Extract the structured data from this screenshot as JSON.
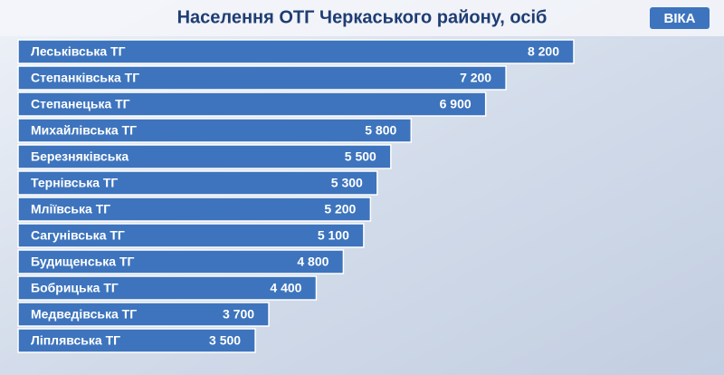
{
  "logo": "ВІКА",
  "chart_data": {
    "type": "bar",
    "orientation": "horizontal",
    "title": "Населення ОТГ Черкаського району, осіб",
    "categories": [
      "Леськівська ТГ",
      "Степанківська ТГ",
      "Степанецька ТГ",
      "Михайлівська ТГ",
      "Березняківська",
      "Тернівська ТГ",
      "Мліївська ТГ",
      "Сагунівська ТГ",
      "Будищенська ТГ",
      "Бобрицька ТГ",
      "Медведівська ТГ",
      "Ліплявська ТГ"
    ],
    "values": [
      8200,
      7200,
      6900,
      5800,
      5500,
      5300,
      5200,
      5100,
      4800,
      4400,
      3700,
      3500
    ],
    "value_labels": [
      "8 200",
      "7 200",
      "6 900",
      "5 800",
      "5 500",
      "5 300",
      "5 200",
      "5 100",
      "4 800",
      "4 400",
      "3 700",
      "3 500"
    ],
    "color": "#3d74bd"
  }
}
